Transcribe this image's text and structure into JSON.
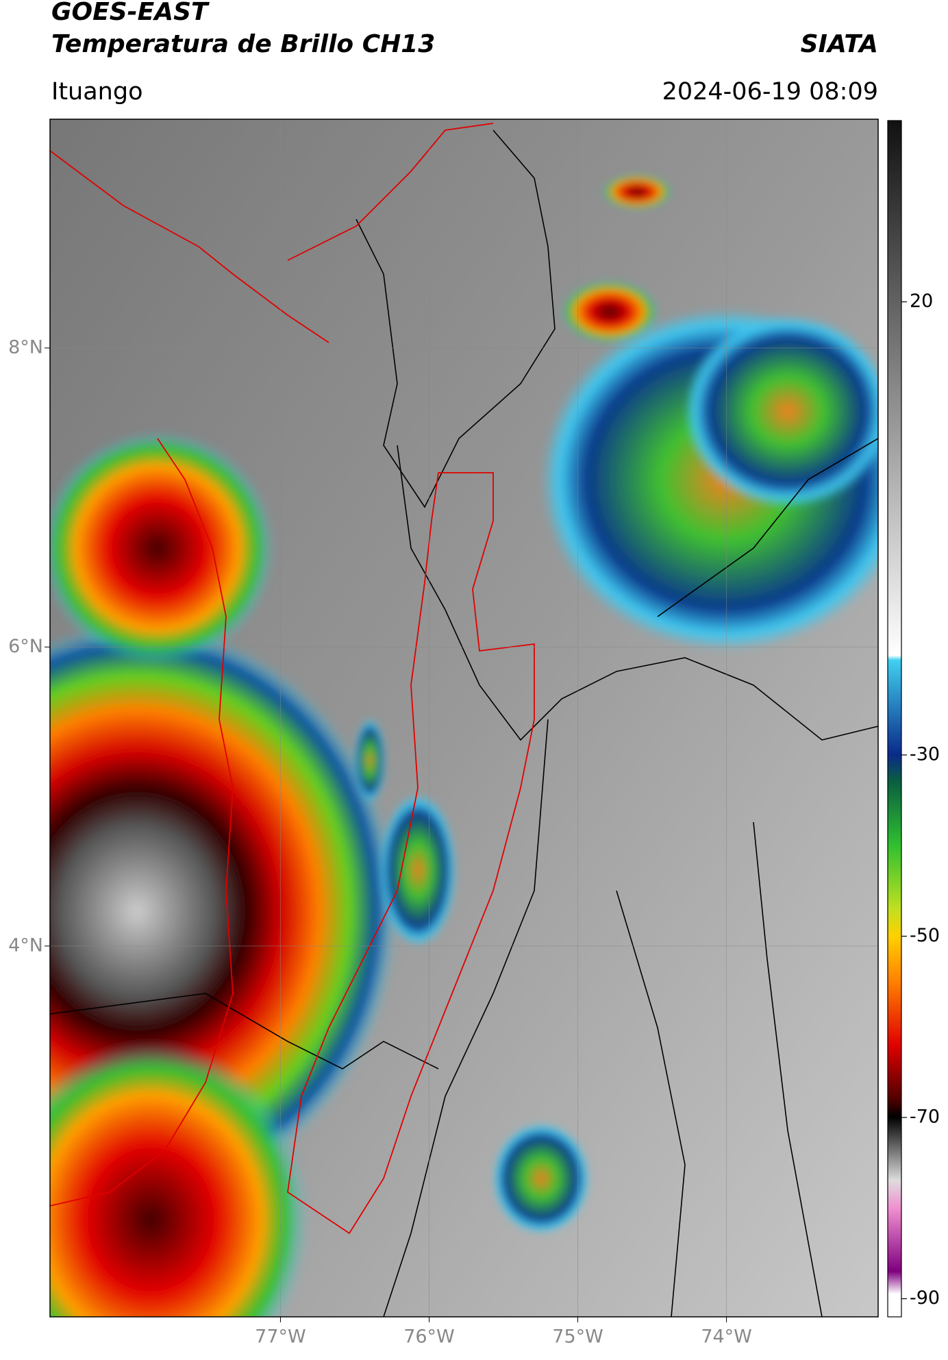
{
  "header": {
    "title": "GOES-EAST",
    "subtitle": "Temperatura de Brillo CH13",
    "agency": "SIATA",
    "location": "Ituango",
    "datetime": "2024-06-19 08:09"
  },
  "map": {
    "xlim": [
      -78.55,
      -72.98
    ],
    "ylim": [
      1.52,
      9.53
    ],
    "lon_ticks": [
      {
        "value": -77,
        "label": "77°W"
      },
      {
        "value": -76,
        "label": "76°W"
      },
      {
        "value": -75,
        "label": "75°W"
      },
      {
        "value": -74,
        "label": "74°W"
      }
    ],
    "lat_ticks": [
      {
        "value": 8,
        "label": "8°N"
      },
      {
        "value": 6,
        "label": "6°N"
      },
      {
        "value": 4,
        "label": "4°N"
      }
    ],
    "grid": true
  },
  "colorbar": {
    "lim": [
      -92,
      40
    ],
    "ticks": [
      20,
      -30,
      -50,
      -70,
      -90
    ]
  }
}
